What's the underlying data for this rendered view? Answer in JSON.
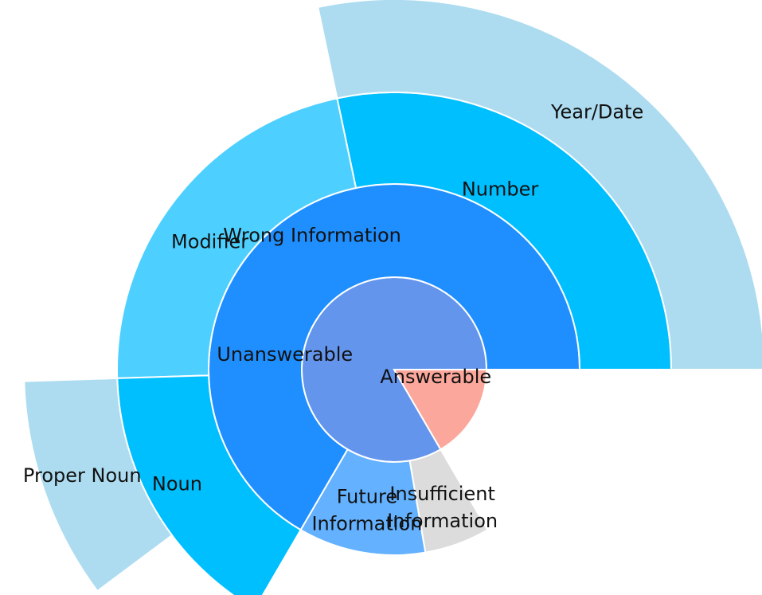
{
  "chart_data": {
    "type": "sunburst",
    "title": "",
    "nodes": [
      {
        "id": "unanswerable",
        "label": "Unanswerable",
        "parent": null,
        "level": 0,
        "value": 83.4,
        "color": "#6495ED"
      },
      {
        "id": "answerable",
        "label": "Answerable",
        "parent": null,
        "level": 0,
        "value": 16.6,
        "color": "#FCA79C"
      },
      {
        "id": "wrong-information",
        "label": "Wrong Information",
        "parent": "unanswerable",
        "level": 1,
        "value": 66.6,
        "color": "#1F8FFF"
      },
      {
        "id": "future-information",
        "label": [
          "Future",
          "Information"
        ],
        "parent": "unanswerable",
        "level": 1,
        "value": 11.1,
        "color": "#63B1FF"
      },
      {
        "id": "insufficient-information",
        "label": [
          "Insufficient",
          "Information"
        ],
        "parent": "unanswerable",
        "level": 1,
        "value": 5.7,
        "color": "#DCDCDC"
      },
      {
        "id": "number",
        "label": "Number",
        "parent": "wrong-information",
        "level": 2,
        "value": 28.3,
        "color": "#00BFFF"
      },
      {
        "id": "modifier",
        "label": "Modifier",
        "parent": "wrong-information",
        "level": 2,
        "value": 22.2,
        "color": "#4DD0FF"
      },
      {
        "id": "noun",
        "label": "Noun",
        "parent": "wrong-information",
        "level": 2,
        "value": 16.1,
        "color": "#00BFFF"
      },
      {
        "id": "year-date",
        "label": "Year/Date",
        "parent": "number",
        "level": 3,
        "value": 28.3,
        "color": "#ADDCF0"
      },
      {
        "id": "proper-noun",
        "label": "Proper Noun",
        "parent": "noun",
        "level": 3,
        "value": 9.7,
        "color": "#ADDCF0"
      }
    ]
  }
}
